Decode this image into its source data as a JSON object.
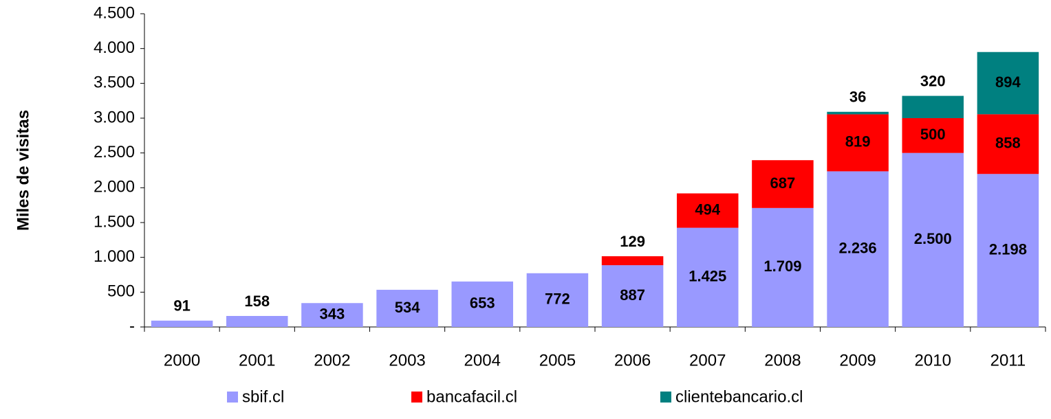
{
  "chart_data": {
    "type": "stacked_bar",
    "y_label": "Miles de visitas",
    "categories": [
      "2000",
      "2001",
      "2002",
      "2003",
      "2004",
      "2005",
      "2006",
      "2007",
      "2008",
      "2009",
      "2010",
      "2011"
    ],
    "series": [
      {
        "name": "sbif.cl",
        "color": "#9999ff",
        "values": [
          91,
          158,
          343,
          534,
          653,
          772,
          887,
          1425,
          1709,
          2236,
          2500,
          2198
        ],
        "value_labels": [
          "91",
          "158",
          "343",
          "534",
          "653",
          "772",
          "887",
          "1.425",
          "1.709",
          "2.236",
          "2.500",
          "2.198"
        ]
      },
      {
        "name": "bancafacil.cl",
        "color": "#ff0000",
        "values": [
          null,
          null,
          null,
          null,
          null,
          null,
          129,
          494,
          687,
          819,
          500,
          858
        ]
      },
      {
        "name": "clientebancario.cl",
        "color": "#008080",
        "values": [
          null,
          null,
          null,
          null,
          null,
          null,
          null,
          null,
          null,
          36,
          320,
          894
        ]
      }
    ],
    "ylim": [
      0,
      4500
    ],
    "yticks": [
      {
        "value": 0,
        "label": "-"
      },
      500,
      {
        "value": 1000,
        "label": "1.000"
      },
      {
        "value": 1500,
        "label": "1.500"
      },
      {
        "value": 2000,
        "label": "2.000"
      },
      {
        "value": 2500,
        "label": "2.500"
      },
      {
        "value": 3000,
        "label": "3.000"
      },
      {
        "value": 3500,
        "label": "3.500"
      },
      {
        "value": 4000,
        "label": "4.000"
      },
      {
        "value": 4500,
        "label": "4.500"
      }
    ],
    "legend": "bottom"
  }
}
